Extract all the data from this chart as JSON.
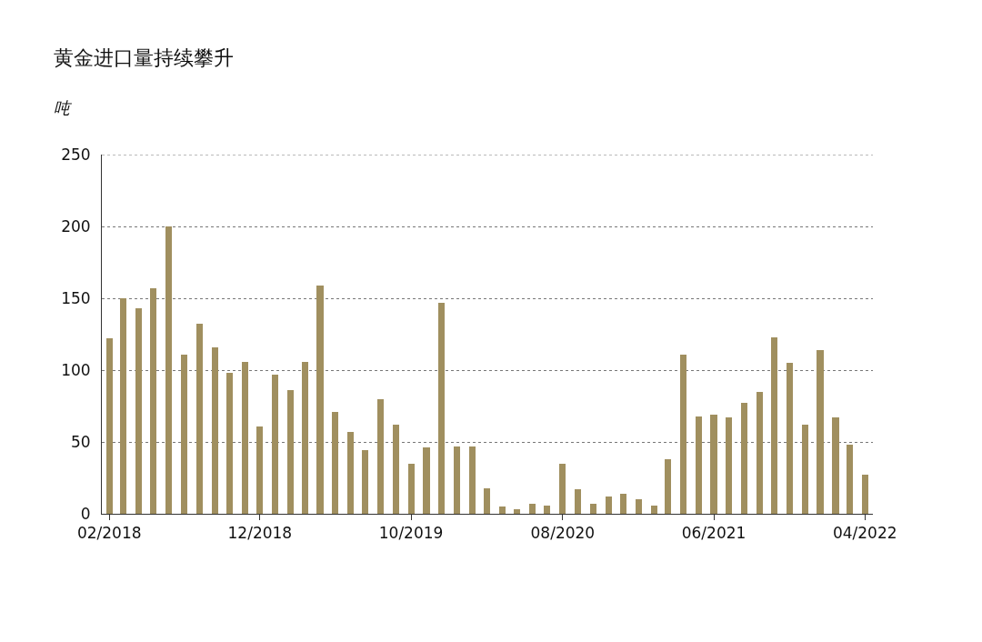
{
  "chart_data": {
    "type": "bar",
    "title": "黄金进口量持续攀升",
    "ylabel": "吨",
    "x": [
      "2018-02",
      "2018-03",
      "2018-04",
      "2018-05",
      "2018-06",
      "2018-07",
      "2018-08",
      "2018-09",
      "2018-10",
      "2018-11",
      "2018-12",
      "2019-01",
      "2019-02",
      "2019-03",
      "2019-04",
      "2019-05",
      "2019-06",
      "2019-07",
      "2019-08",
      "2019-09",
      "2019-10",
      "2019-11",
      "2019-12",
      "2020-01",
      "2020-02",
      "2020-03",
      "2020-04",
      "2020-05",
      "2020-06",
      "2020-07",
      "2020-08",
      "2020-09",
      "2020-10",
      "2020-11",
      "2020-12",
      "2021-01",
      "2021-02",
      "2021-03",
      "2021-04",
      "2021-05",
      "2021-06",
      "2021-07",
      "2021-08",
      "2021-09",
      "2021-10",
      "2021-11",
      "2021-12",
      "2022-01",
      "2022-02",
      "2022-03",
      "2022-04"
    ],
    "values": [
      122,
      150,
      143,
      157,
      200,
      111,
      132,
      116,
      98,
      106,
      61,
      97,
      86,
      106,
      159,
      71,
      57,
      44,
      80,
      62,
      35,
      46,
      147,
      47,
      47,
      18,
      5,
      3,
      7,
      6,
      35,
      17,
      7,
      12,
      14,
      10,
      6,
      38,
      111,
      68,
      69,
      67,
      77,
      85,
      123,
      105,
      62,
      114,
      67,
      48,
      27
    ],
    "color": "#a08f5f",
    "xlim": [
      "2018-01-17",
      "2022-04-17"
    ],
    "xticks": [
      {
        "value": "2018-02",
        "label": "02/2018"
      },
      {
        "value": "2018-12",
        "label": "12/2018"
      },
      {
        "value": "2019-10",
        "label": "10/2019"
      },
      {
        "value": "2020-08",
        "label": "08/2020"
      },
      {
        "value": "2021-06",
        "label": "06/2021"
      },
      {
        "value": "2022-04",
        "label": "04/2022"
      }
    ],
    "ylim": [
      0,
      250
    ],
    "yticks": [
      0,
      50,
      100,
      150,
      200,
      250
    ],
    "grid": "y"
  }
}
